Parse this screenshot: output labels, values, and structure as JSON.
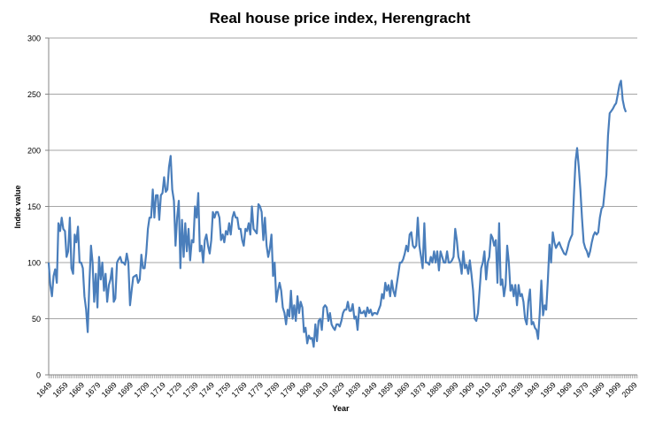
{
  "chart_data": {
    "type": "line",
    "title": "Real house price index, Herengracht",
    "xlabel": "Year",
    "ylabel": "Index value",
    "ylim": [
      0,
      300
    ],
    "y_ticks": [
      "0",
      "50",
      "100",
      "150",
      "200",
      "250",
      "300"
    ],
    "xlim": [
      1649,
      2011
    ],
    "x_tick_labels": [
      "1649",
      "1659",
      "1669",
      "1679",
      "1689",
      "1699",
      "1709",
      "1719",
      "1729",
      "1739",
      "1749",
      "1759",
      "1769",
      "1779",
      "1789",
      "1799",
      "1809",
      "1819",
      "1829",
      "1839",
      "1849",
      "1859",
      "1869",
      "1879",
      "1889",
      "1899",
      "1909",
      "1919",
      "1929",
      "1939",
      "1949",
      "1959",
      "1969",
      "1979",
      "1989",
      "1999",
      "2009"
    ],
    "grid": "horizontal",
    "legend": "none",
    "line_color": "#4a7ebb",
    "series": [
      {
        "name": "Index value",
        "start_year": 1649,
        "values": [
          100,
          80,
          70,
          88,
          94,
          82,
          135,
          128,
          140,
          130,
          128,
          105,
          110,
          140,
          95,
          90,
          125,
          118,
          132,
          100,
          100,
          95,
          70,
          58,
          38,
          80,
          115,
          100,
          65,
          90,
          60,
          105,
          85,
          100,
          75,
          90,
          65,
          80,
          85,
          95,
          65,
          68,
          100,
          103,
          105,
          100,
          100,
          98,
          108,
          100,
          62,
          75,
          87,
          88,
          89,
          82,
          85,
          107,
          95,
          95,
          108,
          130,
          140,
          140,
          165,
          140,
          160,
          160,
          138,
          160,
          162,
          176,
          163,
          165,
          185,
          195,
          165,
          155,
          115,
          140,
          155,
          95,
          138,
          105,
          135,
          110,
          130,
          102,
          120,
          118,
          150,
          140,
          162,
          110,
          115,
          100,
          120,
          125,
          115,
          108,
          120,
          145,
          140,
          145,
          145,
          140,
          120,
          125,
          118,
          128,
          125,
          135,
          125,
          140,
          145,
          140,
          140,
          130,
          130,
          120,
          115,
          130,
          128,
          135,
          125,
          150,
          130,
          128,
          126,
          152,
          150,
          145,
          120,
          140,
          115,
          105,
          112,
          125,
          88,
          100,
          65,
          75,
          82,
          75,
          60,
          55,
          45,
          58,
          52,
          75,
          50,
          62,
          48,
          70,
          55,
          65,
          60,
          38,
          42,
          28,
          35,
          32,
          33,
          25,
          45,
          30,
          48,
          50,
          40,
          60,
          62,
          60,
          48,
          55,
          45,
          42,
          40,
          45,
          45,
          43,
          48,
          55,
          58,
          58,
          65,
          57,
          57,
          63,
          50,
          52,
          40,
          60,
          55,
          55,
          57,
          52,
          60,
          55,
          58,
          53,
          55,
          55,
          54,
          58,
          62,
          72,
          68,
          82,
          75,
          80,
          70,
          84,
          75,
          70,
          80,
          90,
          100,
          100,
          103,
          108,
          115,
          110,
          125,
          127,
          115,
          113,
          115,
          140,
          115,
          105,
          95,
          135,
          100,
          100,
          98,
          105,
          100,
          110,
          100,
          110,
          93,
          110,
          105,
          100,
          100,
          110,
          100,
          100,
          102,
          105,
          130,
          120,
          105,
          100,
          90,
          110,
          95,
          98,
          90,
          102,
          90,
          75,
          50,
          48,
          55,
          75,
          95,
          100,
          110,
          85,
          100,
          105,
          125,
          122,
          115,
          120,
          82,
          135,
          80,
          85,
          70,
          80,
          115,
          100,
          75,
          80,
          70,
          80,
          62,
          80,
          70,
          72,
          65,
          50,
          45,
          65,
          76,
          45,
          47,
          42,
          40,
          32,
          55,
          84,
          53,
          62,
          58,
          85,
          116,
          100,
          127,
          118,
          113,
          116,
          118,
          114,
          111,
          108,
          107,
          112,
          118,
          122,
          125,
          160,
          190,
          202,
          185,
          165,
          140,
          118,
          113,
          110,
          105,
          110,
          118,
          124,
          127,
          125,
          127,
          140,
          148,
          150,
          165,
          178,
          213,
          233,
          235,
          237,
          240,
          242,
          250,
          258,
          262,
          245,
          238,
          234
        ]
      }
    ]
  }
}
